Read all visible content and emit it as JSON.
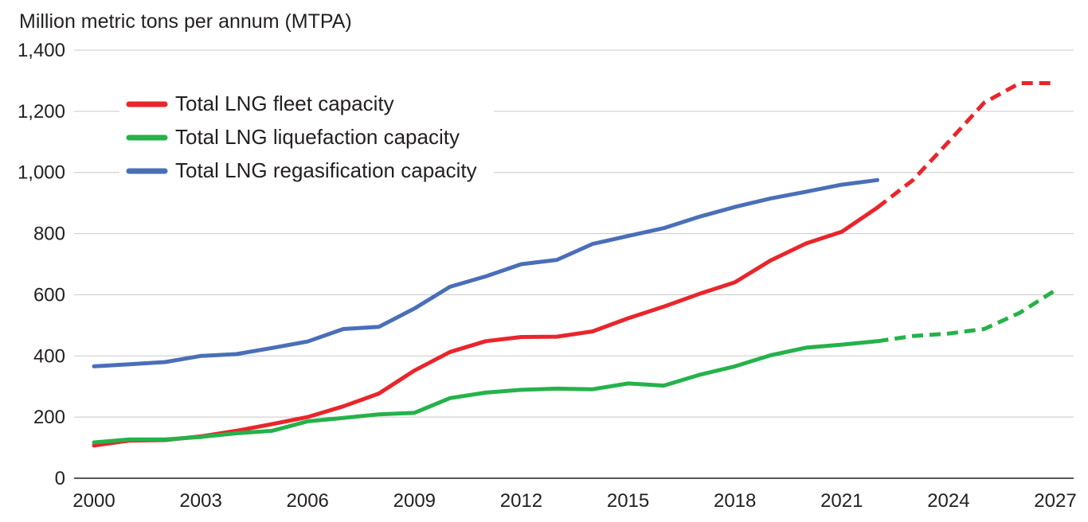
{
  "chart_data": {
    "type": "line",
    "title": "",
    "ylabel": "Million metric tons per annum (MTPA)",
    "xlabel": "",
    "ylim": [
      0,
      1400
    ],
    "xlim": [
      2000,
      2027
    ],
    "yticks": [
      0,
      200,
      400,
      600,
      800,
      1000,
      1200,
      1400
    ],
    "ytick_labels": [
      "0",
      "200",
      "400",
      "600",
      "800",
      "1,000",
      "1,200",
      "1,400"
    ],
    "xticks": [
      2000,
      2003,
      2006,
      2009,
      2012,
      2015,
      2018,
      2021,
      2024,
      2027
    ],
    "xtick_labels": [
      "2000",
      "2003",
      "2006",
      "2009",
      "2012",
      "2015",
      "2018",
      "2021",
      "2024",
      "2027"
    ],
    "grid": "horizontal",
    "legend_position": "top-left",
    "series": [
      {
        "name": "Total LNG fleet capacity",
        "color": "#e8262b",
        "x": [
          2000,
          2001,
          2002,
          2003,
          2004,
          2005,
          2006,
          2007,
          2008,
          2009,
          2010,
          2011,
          2012,
          2013,
          2014,
          2015,
          2016,
          2017,
          2018,
          2019,
          2020,
          2021,
          2022
        ],
        "values": [
          107,
          123,
          125,
          137,
          155,
          177,
          200,
          235,
          277,
          352,
          413,
          448,
          462,
          463,
          480,
          523,
          561,
          603,
          641,
          712,
          768,
          806,
          885
        ],
        "projection_x": [
          2022,
          2023,
          2024,
          2025,
          2026,
          2027
        ],
        "projection_values": [
          885,
          975,
          1100,
          1228,
          1292,
          1292
        ]
      },
      {
        "name": "Total LNG liquefaction capacity",
        "color": "#25b24a",
        "x": [
          2000,
          2001,
          2002,
          2003,
          2004,
          2005,
          2006,
          2007,
          2008,
          2009,
          2010,
          2011,
          2012,
          2013,
          2014,
          2015,
          2016,
          2017,
          2018,
          2019,
          2020,
          2021,
          2022
        ],
        "values": [
          117,
          127,
          127,
          135,
          147,
          155,
          186,
          197,
          209,
          214,
          262,
          280,
          289,
          293,
          291,
          310,
          303,
          338,
          366,
          402,
          427,
          437,
          448
        ],
        "projection_x": [
          2022,
          2023,
          2024,
          2025,
          2026,
          2027
        ],
        "projection_values": [
          448,
          465,
          473,
          488,
          541,
          615
        ]
      },
      {
        "name": "Total LNG regasification capacity",
        "color": "#4a6fb8",
        "x": [
          2000,
          2001,
          2002,
          2003,
          2004,
          2005,
          2006,
          2007,
          2008,
          2009,
          2010,
          2011,
          2012,
          2013,
          2014,
          2015,
          2016,
          2017,
          2018,
          2019,
          2020,
          2021,
          2022
        ],
        "values": [
          366,
          373,
          380,
          400,
          406,
          426,
          447,
          488,
          495,
          555,
          626,
          660,
          700,
          714,
          766,
          792,
          818,
          855,
          887,
          915,
          937,
          960,
          975
        ]
      }
    ]
  }
}
